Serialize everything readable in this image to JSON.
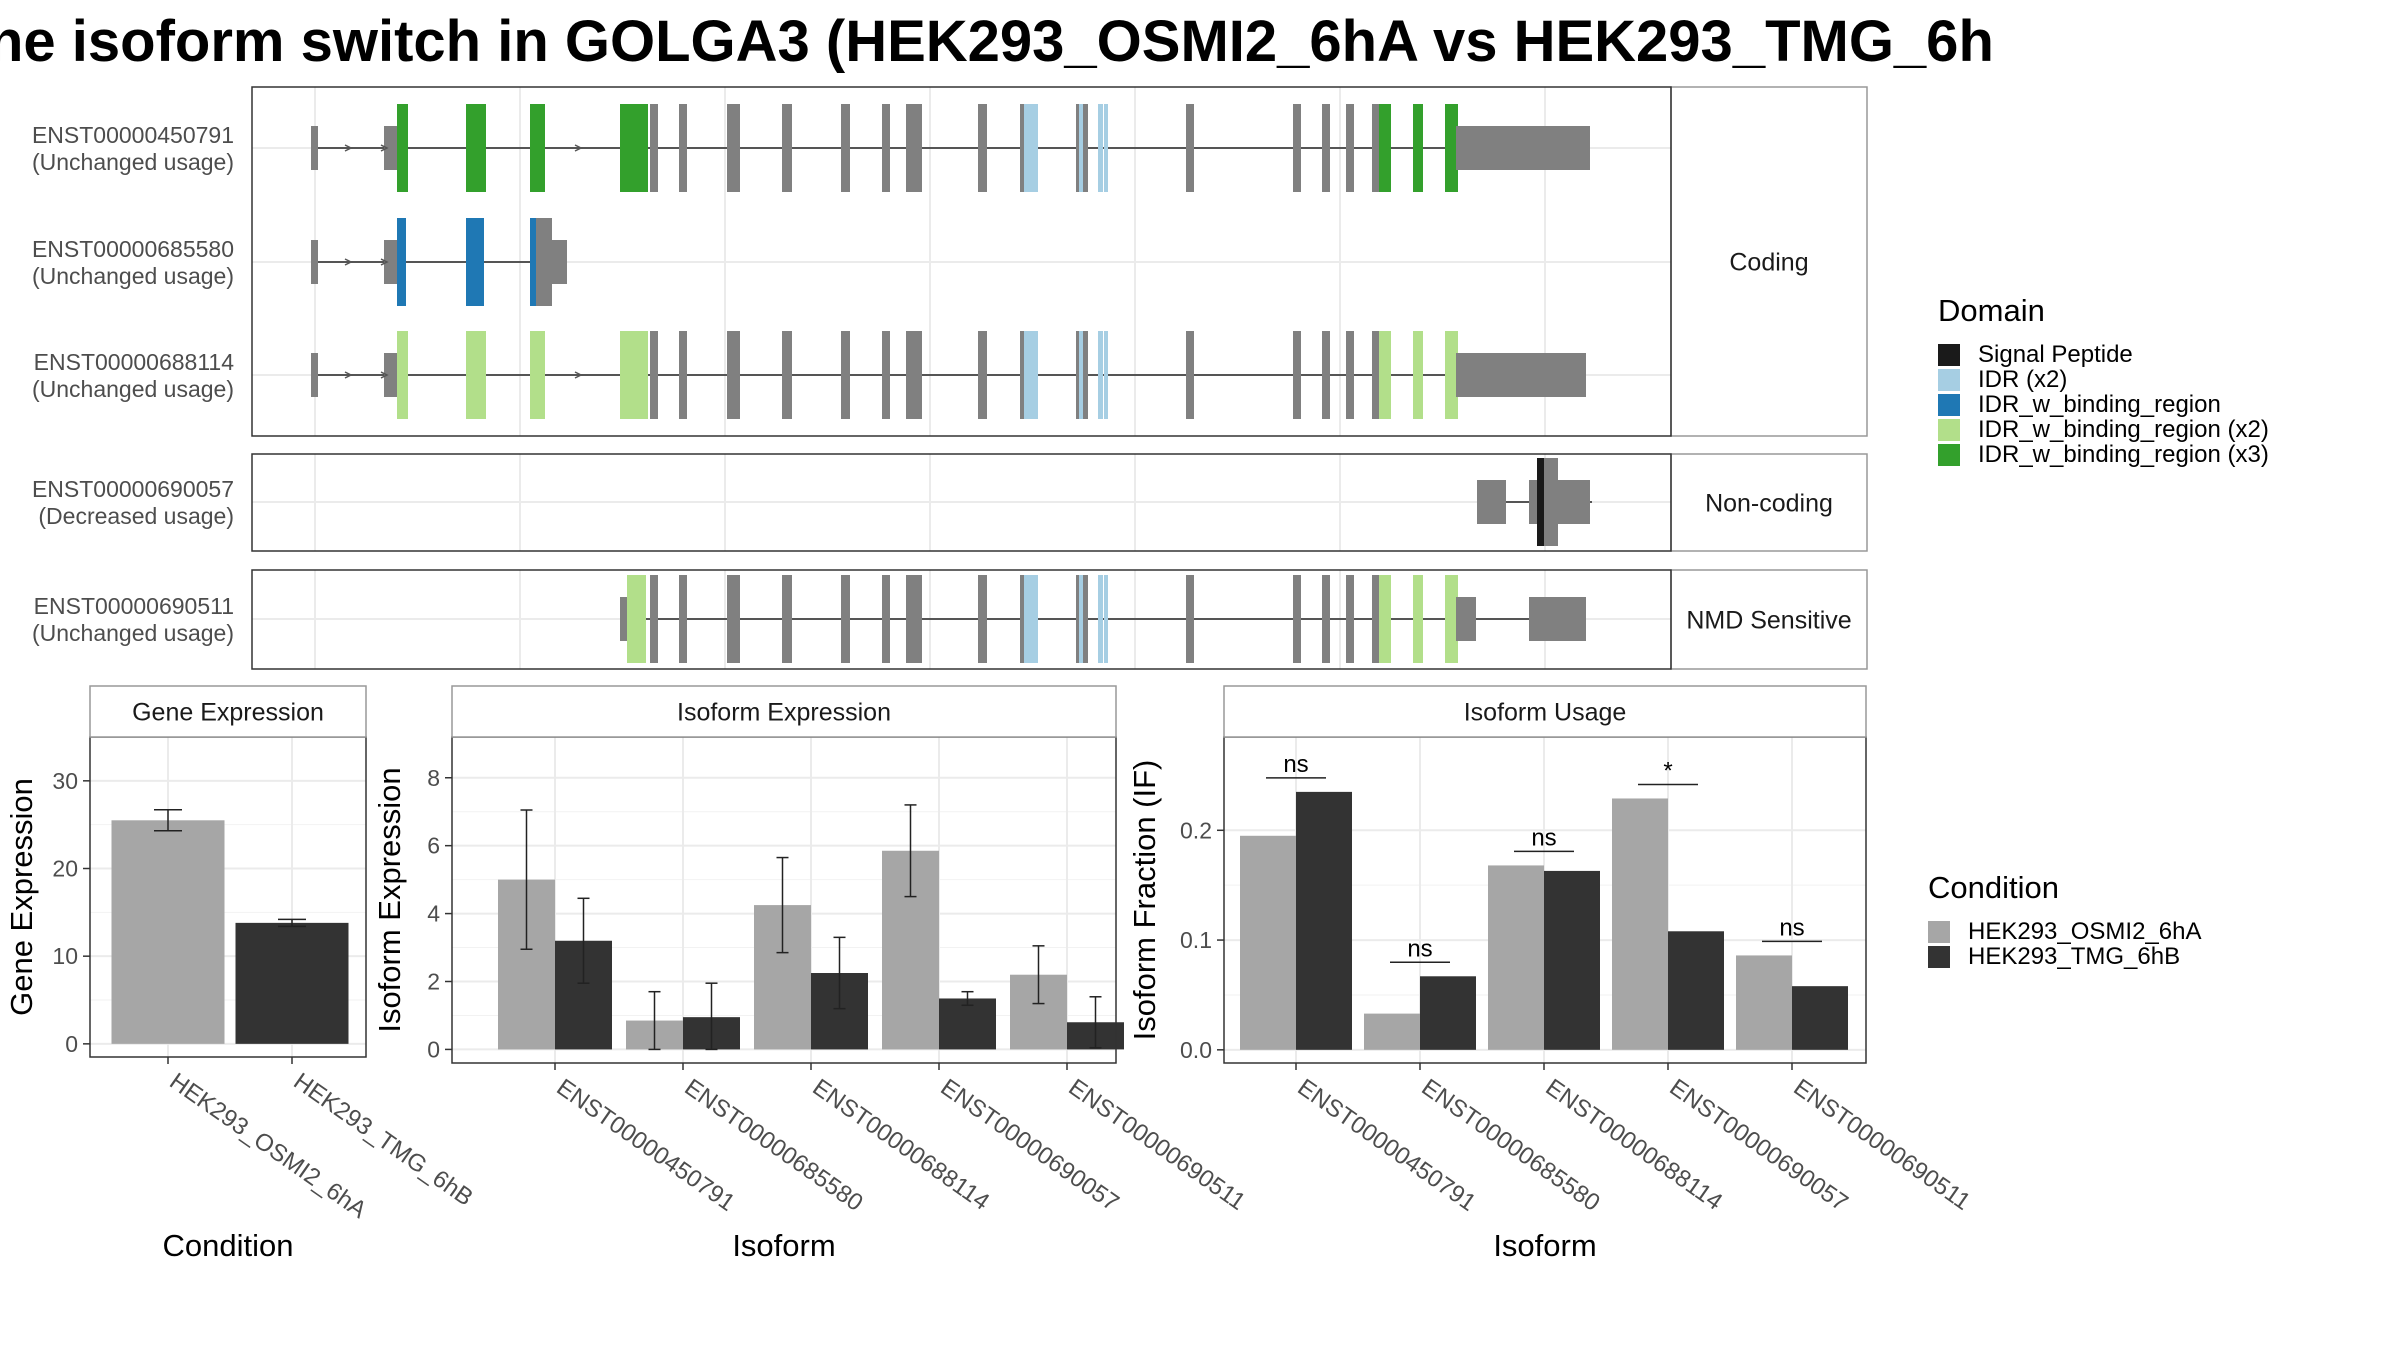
{
  "title": "ne isoform switch in GOLGA3 (HEK293_OSMI2_6hA vs HEK293_TMG_6h",
  "colors": {
    "gray_exon": "#808080",
    "signal_peptide": "#1a1a1a",
    "idr_x2": "#a6cee3",
    "idr_w_binding_region": "#1f78b4",
    "idr_w_binding_region_x2": "#b2df8a",
    "idr_w_binding_region_x3": "#33a02c",
    "condition_a": "#a6a6a6",
    "condition_b": "#333333"
  },
  "transcript_panels": [
    {
      "label": "Coding",
      "transcripts": [
        {
          "id": "ENST00000450791",
          "usage": "(Unchanged usage)"
        },
        {
          "id": "ENST00000685580",
          "usage": "(Unchanged usage)"
        },
        {
          "id": "ENST00000688114",
          "usage": "(Unchanged usage)"
        }
      ]
    },
    {
      "label": "Non-coding",
      "transcripts": [
        {
          "id": "ENST00000690057",
          "usage": "(Decreased usage)"
        }
      ]
    },
    {
      "label": "NMD Sensitive",
      "transcripts": [
        {
          "id": "ENST00000690511",
          "usage": "(Unchanged usage)"
        }
      ]
    }
  ],
  "domain_legend": {
    "title": "Domain",
    "items": [
      {
        "label": "Signal Peptide",
        "color": "#1a1a1a"
      },
      {
        "label": "IDR (x2)",
        "color": "#a6cee3"
      },
      {
        "label": "IDR_w_binding_region",
        "color": "#1f78b4"
      },
      {
        "label": "IDR_w_binding_region (x2)",
        "color": "#b2df8a"
      },
      {
        "label": "IDR_w_binding_region (x3)",
        "color": "#33a02c"
      }
    ]
  },
  "condition_legend": {
    "title": "Condition",
    "items": [
      {
        "label": "HEK293_OSMI2_6hA",
        "color": "#a6a6a6"
      },
      {
        "label": "HEK293_TMG_6hB",
        "color": "#333333"
      }
    ]
  },
  "chart_data": [
    {
      "type": "bar",
      "title": "Gene Expression",
      "xlabel": "Condition",
      "ylabel": "Gene Expression",
      "categories": [
        "HEK293_OSMI2_6hA",
        "HEK293_TMG_6hB"
      ],
      "values": [
        25.5,
        13.8
      ],
      "errors": [
        [
          24.3,
          26.7
        ],
        [
          13.4,
          14.2
        ]
      ],
      "ylim": [
        -1.5,
        35
      ],
      "yticks": [
        0,
        10,
        20,
        30
      ],
      "grid": true
    },
    {
      "type": "bar",
      "title": "Isoform Expression",
      "xlabel": "Isoform",
      "ylabel": "Isoform Expression",
      "categories": [
        "ENST00000450791",
        "ENST00000685580",
        "ENST00000688114",
        "ENST00000690057",
        "ENST00000690511"
      ],
      "series": [
        {
          "name": "HEK293_OSMI2_6hA",
          "values": [
            5.0,
            0.85,
            4.25,
            5.85,
            2.2
          ],
          "errors": [
            [
              2.95,
              7.05
            ],
            [
              0.0,
              1.7
            ],
            [
              2.85,
              5.65
            ],
            [
              4.5,
              7.2
            ],
            [
              1.35,
              3.05
            ]
          ]
        },
        {
          "name": "HEK293_TMG_6hB",
          "values": [
            3.2,
            0.95,
            2.25,
            1.5,
            0.8
          ],
          "errors": [
            [
              1.95,
              4.45
            ],
            [
              0.0,
              1.95
            ],
            [
              1.2,
              3.3
            ],
            [
              1.3,
              1.7
            ],
            [
              0.05,
              1.55
            ]
          ]
        }
      ],
      "ylim": [
        -0.4,
        9.2
      ],
      "yticks": [
        0,
        2,
        4,
        6,
        8
      ],
      "grid": true
    },
    {
      "type": "bar",
      "title": "Isoform Usage",
      "xlabel": "Isoform",
      "ylabel": "Isoform Fraction (IF)",
      "categories": [
        "ENST00000450791",
        "ENST00000685580",
        "ENST00000688114",
        "ENST00000690057",
        "ENST00000690511"
      ],
      "series": [
        {
          "name": "HEK293_OSMI2_6hA",
          "values": [
            0.195,
            0.033,
            0.168,
            0.229,
            0.086
          ]
        },
        {
          "name": "HEK293_TMG_6hB",
          "values": [
            0.235,
            0.067,
            0.163,
            0.108,
            0.058
          ]
        }
      ],
      "significance": [
        "ns",
        "ns",
        "ns",
        "*",
        "ns"
      ],
      "ylim": [
        -0.012,
        0.285
      ],
      "yticks": [
        0.0,
        0.1,
        0.2
      ],
      "ytick_labels": [
        "0.0",
        "0.1",
        "0.2"
      ],
      "grid": true
    }
  ]
}
